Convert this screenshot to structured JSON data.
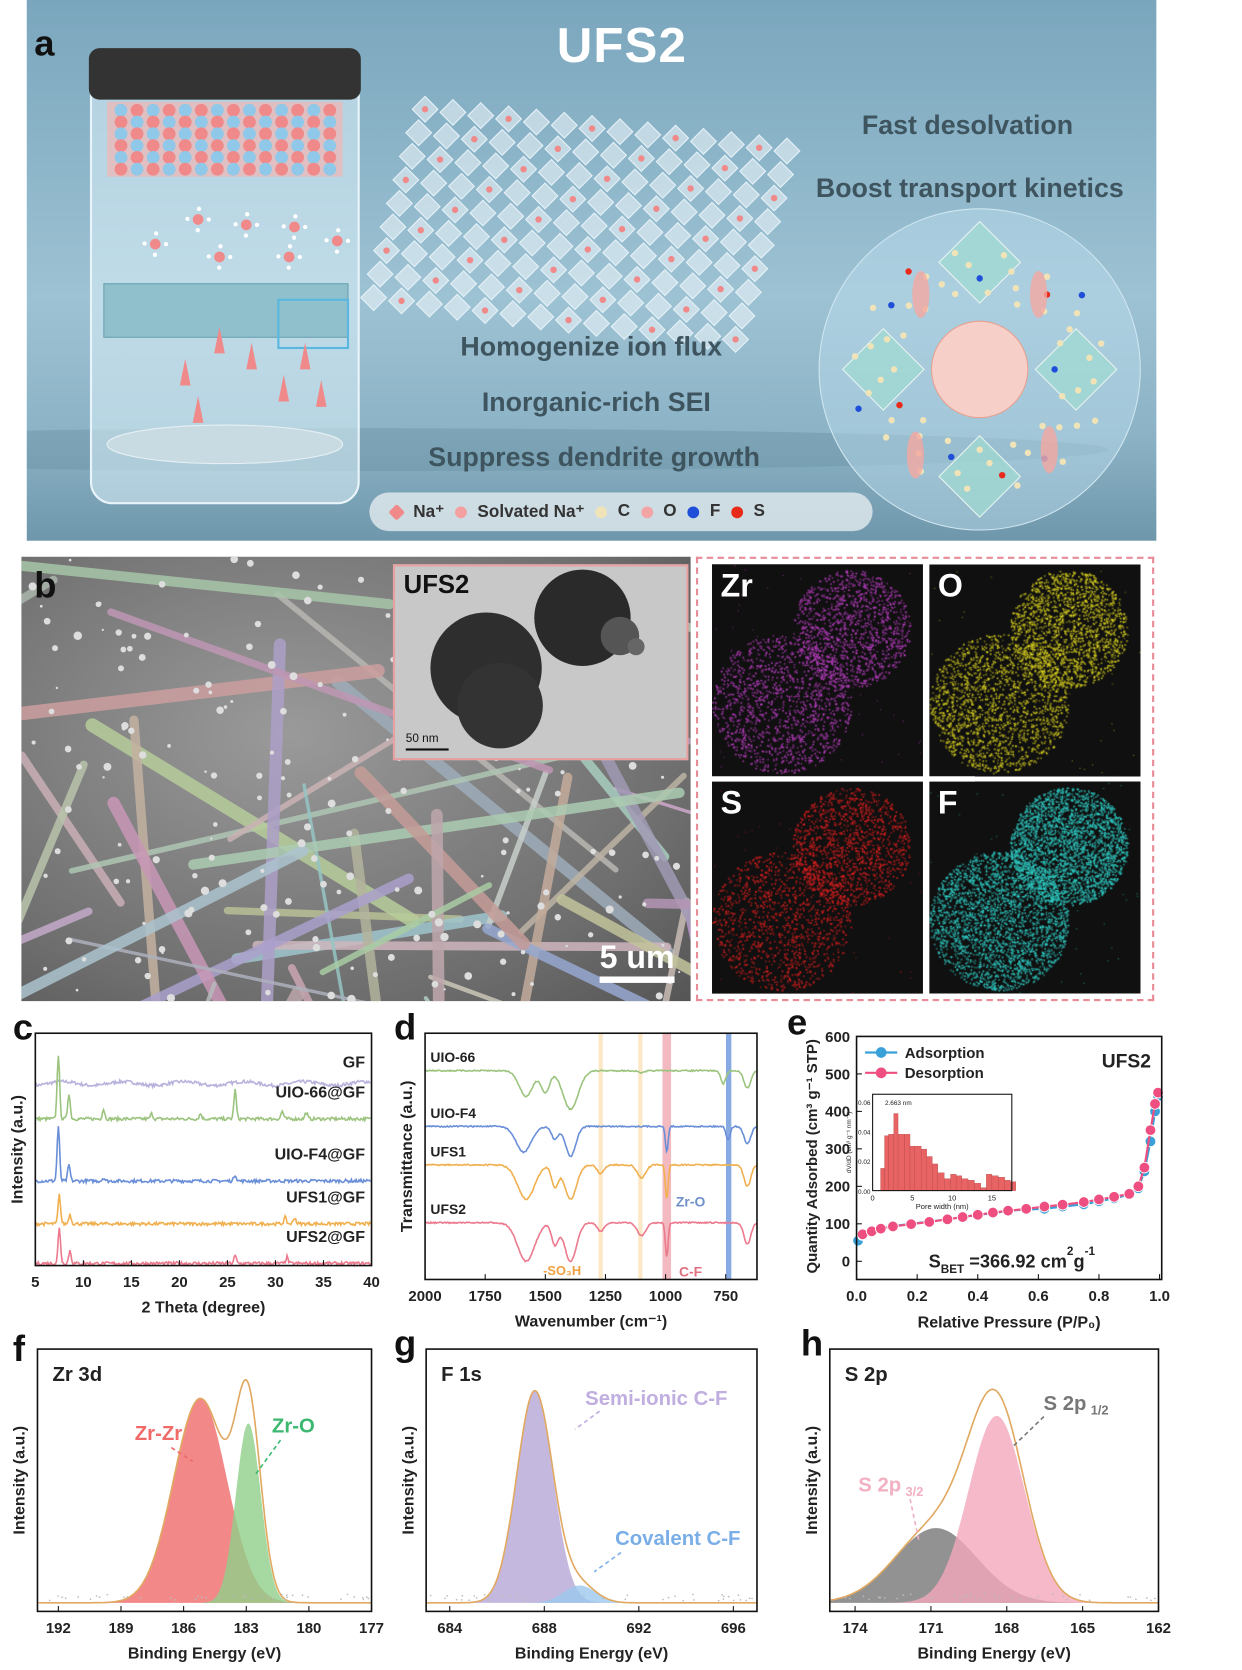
{
  "panel_labels": {
    "a": "a",
    "b": "b",
    "c": "c",
    "d": "d",
    "e": "e",
    "f": "f",
    "g": "g",
    "h": "h"
  },
  "panel_a": {
    "title": "UFS2",
    "features_right": [
      "Fast desolvation",
      "Boost transport kinetics"
    ],
    "features_center": [
      "Homogenize ion flux",
      "Inorganic-rich SEI",
      "Suppress dendrite growth"
    ],
    "legend": [
      {
        "label": "Na⁺",
        "color": "#f08a8a"
      },
      {
        "label": "Solvated Na⁺",
        "color": "#f4a0a0"
      },
      {
        "label": "C",
        "color": "#f1e3b8"
      },
      {
        "label": "O",
        "color": "#f3a4a4"
      },
      {
        "label": "F",
        "color": "#1f4fd8"
      },
      {
        "label": "S",
        "color": "#e82a1a"
      }
    ]
  },
  "panel_b": {
    "scale_bar": "5 um",
    "inset_title": "UFS2",
    "inset_scale_bar": "50 nm",
    "eds_maps": [
      {
        "element": "Zr",
        "color": "#c040c8"
      },
      {
        "element": "O",
        "color": "#d8d020"
      },
      {
        "element": "S",
        "color": "#e02020"
      },
      {
        "element": "F",
        "color": "#30d0c8"
      }
    ]
  },
  "chart_data": [
    {
      "id": "c",
      "type": "line",
      "xlabel": "2 Theta (degree)",
      "ylabel": "Intensity (a.u.)",
      "xlim": [
        5,
        40
      ],
      "xticks": [
        5,
        10,
        15,
        20,
        25,
        30,
        35,
        40
      ],
      "series": [
        {
          "name": "GF",
          "color": "#b7b3dc",
          "peaks": []
        },
        {
          "name": "UIO-66@GF",
          "color": "#9cc47f",
          "peaks": [
            [
              7.4,
              1.0
            ],
            [
              8.5,
              0.4
            ],
            [
              12.1,
              0.15
            ],
            [
              17.1,
              0.08
            ],
            [
              22.2,
              0.08
            ],
            [
              25.8,
              0.45
            ],
            [
              30.7,
              0.12
            ],
            [
              33.2,
              0.1
            ]
          ]
        },
        {
          "name": "UIO-F4@GF",
          "color": "#6a8fd8",
          "peaks": [
            [
              7.4,
              0.85
            ],
            [
              8.5,
              0.25
            ],
            [
              12.1,
              0.05
            ],
            [
              25.8,
              0.1
            ]
          ]
        },
        {
          "name": "UFS1@GF",
          "color": "#f0b050",
          "peaks": [
            [
              7.5,
              0.45
            ],
            [
              8.6,
              0.15
            ],
            [
              31.0,
              0.1
            ],
            [
              32.0,
              0.1
            ]
          ]
        },
        {
          "name": "UFS2@GF",
          "color": "#ec7a8e",
          "peaks": [
            [
              7.5,
              0.55
            ],
            [
              8.6,
              0.2
            ],
            [
              25.8,
              0.12
            ],
            [
              31.2,
              0.1
            ]
          ]
        }
      ]
    },
    {
      "id": "d",
      "type": "line",
      "xlabel": "Wavenumber (cm⁻¹)",
      "ylabel": "Transmittance (a.u.)",
      "xlim": [
        2000,
        620
      ],
      "xticks": [
        2000,
        1750,
        1500,
        1250,
        1000,
        750
      ],
      "bands": [
        {
          "center": 1270,
          "color": "#fbe1b8"
        },
        {
          "center": 1105,
          "color": "#fbe1b8"
        },
        {
          "center": 995,
          "color": "#f0a8b0"
        },
        {
          "center": 740,
          "color": "#6a95dc"
        }
      ],
      "annotations": [
        "-SO₃H",
        "C-F",
        "Zr-O"
      ],
      "series": [
        {
          "name": "UIO-66",
          "color": "#9cc47f",
          "dips": [
            [
              1580,
              0.6,
              40
            ],
            [
              1500,
              0.5,
              25
            ],
            [
              1395,
              0.9,
              45
            ],
            [
              1100,
              0.05,
              20
            ],
            [
              760,
              0.3,
              15
            ],
            [
              660,
              0.4,
              20
            ]
          ]
        },
        {
          "name": "UIO-F4",
          "color": "#6a8fd8",
          "dips": [
            [
              1590,
              0.6,
              45
            ],
            [
              1460,
              0.3,
              20
            ],
            [
              1395,
              0.7,
              30
            ],
            [
              995,
              0.6,
              8
            ],
            [
              740,
              0.3,
              12
            ],
            [
              660,
              0.4,
              20
            ]
          ]
        },
        {
          "name": "UFS1",
          "color": "#f0b050",
          "dips": [
            [
              1580,
              0.8,
              50
            ],
            [
              1460,
              0.5,
              20
            ],
            [
              1395,
              0.8,
              35
            ],
            [
              1270,
              0.2,
              20
            ],
            [
              1100,
              0.3,
              25
            ],
            [
              995,
              0.8,
              8
            ],
            [
              660,
              0.5,
              20
            ]
          ]
        },
        {
          "name": "UFS2",
          "color": "#ec7a8e",
          "dips": [
            [
              1580,
              0.9,
              50
            ],
            [
              1460,
              0.5,
              20
            ],
            [
              1395,
              0.9,
              35
            ],
            [
              1270,
              0.2,
              20
            ],
            [
              1100,
              0.3,
              25
            ],
            [
              995,
              0.8,
              8
            ],
            [
              660,
              0.5,
              20
            ]
          ]
        }
      ]
    },
    {
      "id": "e",
      "type": "line",
      "title": "UFS2",
      "xlabel": "Relative Pressure (P/P₀)",
      "ylabel": "Quantity Adsorbed (cm³ g⁻¹ STP)",
      "xlim": [
        0,
        1
      ],
      "ylim": [
        0,
        600
      ],
      "xticks": [
        "0.0",
        "0.2",
        "0.4",
        "0.6",
        "0.8",
        "1.0"
      ],
      "yticks": [
        0,
        100,
        200,
        300,
        400,
        500,
        600
      ],
      "annotation": "S_BET = 366.92 cm²g⁻¹",
      "annotation_text": {
        "s": "S",
        "sub": "BET",
        "value": " =366.92 cm",
        "sup1": "2",
        "g": "g",
        "sup2": "-1"
      },
      "legend_placement": "top-left",
      "series": [
        {
          "name": "Adsorption",
          "color": "#3aa0d8",
          "x": [
            0.005,
            0.02,
            0.05,
            0.08,
            0.12,
            0.18,
            0.24,
            0.3,
            0.35,
            0.4,
            0.45,
            0.5,
            0.56,
            0.62,
            0.68,
            0.75,
            0.8,
            0.85,
            0.9,
            0.93,
            0.95,
            0.97,
            0.985,
            0.995
          ],
          "y": [
            55,
            70,
            82,
            88,
            94,
            100,
            106,
            112,
            118,
            124,
            128,
            135,
            138,
            140,
            146,
            152,
            160,
            168,
            178,
            195,
            240,
            320,
            400,
            440
          ]
        },
        {
          "name": "Desorption",
          "color": "#ee4f80",
          "x": [
            0.02,
            0.05,
            0.08,
            0.12,
            0.18,
            0.24,
            0.3,
            0.35,
            0.4,
            0.45,
            0.5,
            0.56,
            0.62,
            0.68,
            0.75,
            0.8,
            0.85,
            0.9,
            0.93,
            0.95,
            0.97,
            0.985,
            0.995
          ],
          "y": [
            72,
            80,
            87,
            93,
            99,
            105,
            112,
            118,
            124,
            130,
            135,
            140,
            146,
            151,
            158,
            165,
            172,
            180,
            200,
            250,
            350,
            420,
            450
          ]
        }
      ],
      "inset": {
        "type": "bar",
        "xlabel": "Pore width (nm)",
        "ylabel": "dV/dD (cm³ g⁻¹ nm⁻¹)",
        "annotation": "2.663 nm",
        "xlim": [
          0,
          17.5
        ],
        "ylim": [
          0,
          0.065
        ],
        "xticks": [
          0,
          5,
          10,
          15
        ],
        "yticks": [
          "0.00",
          "0.02",
          "0.04",
          "0.06"
        ],
        "color": "#e86464",
        "x": [
          1,
          1.5,
          2,
          2.663,
          3.2,
          4,
          4.7,
          5.3,
          6.1,
          6.8,
          7.5,
          8.2,
          9,
          9.8,
          10.5,
          11.2,
          12,
          12.8,
          13.6,
          14.3,
          15,
          15.8,
          16.6,
          17.3
        ],
        "y": [
          0.015,
          0.037,
          0.038,
          0.052,
          0.038,
          0.038,
          0.03,
          0.03,
          0.028,
          0.023,
          0.018,
          0.012,
          0.008,
          0.011,
          0.01,
          0.008,
          0.007,
          0.005,
          0.002,
          0.011,
          0.01,
          0.009,
          0.007,
          0.006
        ]
      }
    },
    {
      "id": "f",
      "type": "line",
      "title": "Zr 3d",
      "xlabel": "Binding Energy (eV)",
      "ylabel": "Intensity (a.u.)",
      "xlim": [
        193,
        177
      ],
      "xticks": [
        192,
        189,
        186,
        183,
        180,
        177
      ],
      "components": [
        {
          "name": "Zr-Zr",
          "center": 185.2,
          "height": 0.82,
          "fwhm": 3.0,
          "color": "#f06a6a",
          "label_color": "#f06a6a"
        },
        {
          "name": "Zr-O",
          "center": 182.9,
          "height": 0.72,
          "fwhm": 1.4,
          "color": "#8fd08a",
          "label_color": "#3cb870"
        }
      ],
      "envelope_color": "#e0a860"
    },
    {
      "id": "g",
      "type": "line",
      "title": "F 1s",
      "xlabel": "Binding Energy (eV)",
      "ylabel": "Intensity (a.u.)",
      "xlim": [
        683,
        697
      ],
      "xticks": [
        684,
        688,
        692,
        696
      ],
      "components": [
        {
          "name": "Semi-ionic C-F",
          "center": 687.6,
          "height": 0.85,
          "fwhm": 1.8,
          "color": "#b7a6d6",
          "label_color": "#c0aee0"
        },
        {
          "name": "Covalent C-F",
          "center": 689.5,
          "height": 0.07,
          "fwhm": 1.6,
          "color": "#9cc8ee",
          "label_color": "#79aee6"
        }
      ],
      "envelope_color": "#e0a860"
    },
    {
      "id": "h",
      "type": "line",
      "title": "S 2p",
      "xlabel": "Binding Energy (eV)",
      "ylabel": "Intensity (a.u.)",
      "xlim": [
        175,
        162
      ],
      "xticks": [
        174,
        171,
        168,
        165,
        162
      ],
      "components": [
        {
          "name": "S 2p1/2",
          "label_main": "S 2p",
          "label_sub": "1/2",
          "center": 170.8,
          "height": 0.3,
          "fwhm": 3.8,
          "color": "#777777",
          "label_color": "#777777"
        },
        {
          "name": "S 2p3/2",
          "label_main": "S 2p",
          "label_sub": "3/2",
          "center": 168.4,
          "height": 0.75,
          "fwhm": 2.6,
          "color": "#f2a8bc",
          "label_color": "#f2b0c2"
        }
      ],
      "envelope_color": "#e0a860"
    }
  ]
}
